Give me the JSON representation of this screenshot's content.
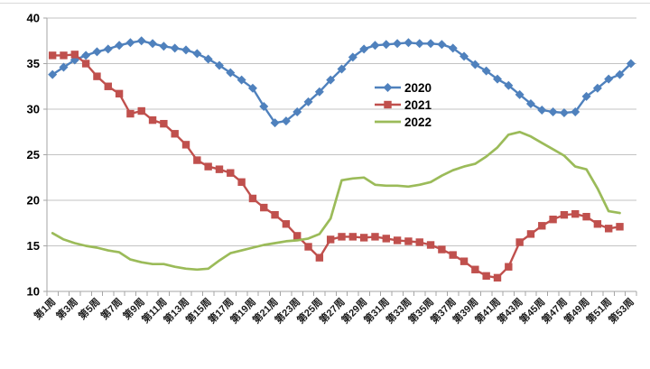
{
  "chart_data": {
    "type": "line",
    "title": "",
    "x_unit": "week",
    "weeks": 53,
    "x_tick_labels": [
      "第1周",
      "第3周",
      "第5周",
      "第7周",
      "第9周",
      "第11周",
      "第13周",
      "第15周",
      "第17周",
      "第19周",
      "第21周",
      "第23周",
      "第25周",
      "第27周",
      "第29周",
      "第31周",
      "第33周",
      "第35周",
      "第37周",
      "第39周",
      "第41周",
      "第43周",
      "第45周",
      "第47周",
      "第49周",
      "第51周",
      "第53周"
    ],
    "y_tick_labels": [
      "10",
      "15",
      "20",
      "25",
      "30",
      "35",
      "40"
    ],
    "ylim": [
      10,
      40
    ],
    "y_tick_step": 5,
    "grid": "horizontal",
    "legend_position": "inside-center",
    "colors": {
      "gridline": "#c3c3c3",
      "axis": "#a6a6a6",
      "text": "#000000"
    },
    "series": [
      {
        "name": "2020",
        "color": "#4F81BD",
        "marker": "diamond",
        "values": [
          33.8,
          34.6,
          35.4,
          35.9,
          36.3,
          36.6,
          37.0,
          37.3,
          37.5,
          37.2,
          36.9,
          36.7,
          36.5,
          36.1,
          35.5,
          34.8,
          34.0,
          33.2,
          32.3,
          30.3,
          28.5,
          28.7,
          29.7,
          30.8,
          31.9,
          33.2,
          34.4,
          35.7,
          36.6,
          37.0,
          37.1,
          37.2,
          37.3,
          37.2,
          37.2,
          37.1,
          36.7,
          35.8,
          34.9,
          34.2,
          33.3,
          32.6,
          31.6,
          30.6,
          29.9,
          29.7,
          29.6,
          29.7,
          31.4,
          32.3,
          33.3,
          33.8,
          35.0
        ]
      },
      {
        "name": "2021",
        "color": "#C0504D",
        "marker": "square",
        "values": [
          35.9,
          35.9,
          36.0,
          35.0,
          33.6,
          32.5,
          31.7,
          29.5,
          29.8,
          28.8,
          28.4,
          27.3,
          26.1,
          24.4,
          23.7,
          23.4,
          23.0,
          22.0,
          20.2,
          19.2,
          18.4,
          17.4,
          16.1,
          14.9,
          13.7,
          15.7,
          16.0,
          16.0,
          15.9,
          16.0,
          15.8,
          15.6,
          15.5,
          15.4,
          15.1,
          14.6,
          14.0,
          13.3,
          12.4,
          11.7,
          11.5,
          12.7,
          15.4,
          16.3,
          17.2,
          17.9,
          18.4,
          18.5,
          18.2,
          17.4,
          16.9,
          17.1
        ]
      },
      {
        "name": "2022",
        "color": "#9BBB59",
        "marker": "none",
        "values": [
          16.4,
          15.7,
          15.3,
          15.0,
          14.8,
          14.5,
          14.3,
          13.5,
          13.2,
          13.0,
          13.0,
          12.7,
          12.5,
          12.4,
          12.5,
          13.4,
          14.2,
          14.5,
          14.8,
          15.1,
          15.3,
          15.5,
          15.6,
          15.8,
          16.3,
          18.0,
          22.2,
          22.4,
          22.5,
          21.7,
          21.6,
          21.6,
          21.5,
          21.7,
          22.0,
          22.7,
          23.3,
          23.7,
          24.0,
          24.8,
          25.8,
          27.2,
          27.5,
          27.0,
          26.3,
          25.6,
          24.9,
          23.7,
          23.4,
          21.3,
          18.8,
          18.6
        ]
      }
    ]
  }
}
